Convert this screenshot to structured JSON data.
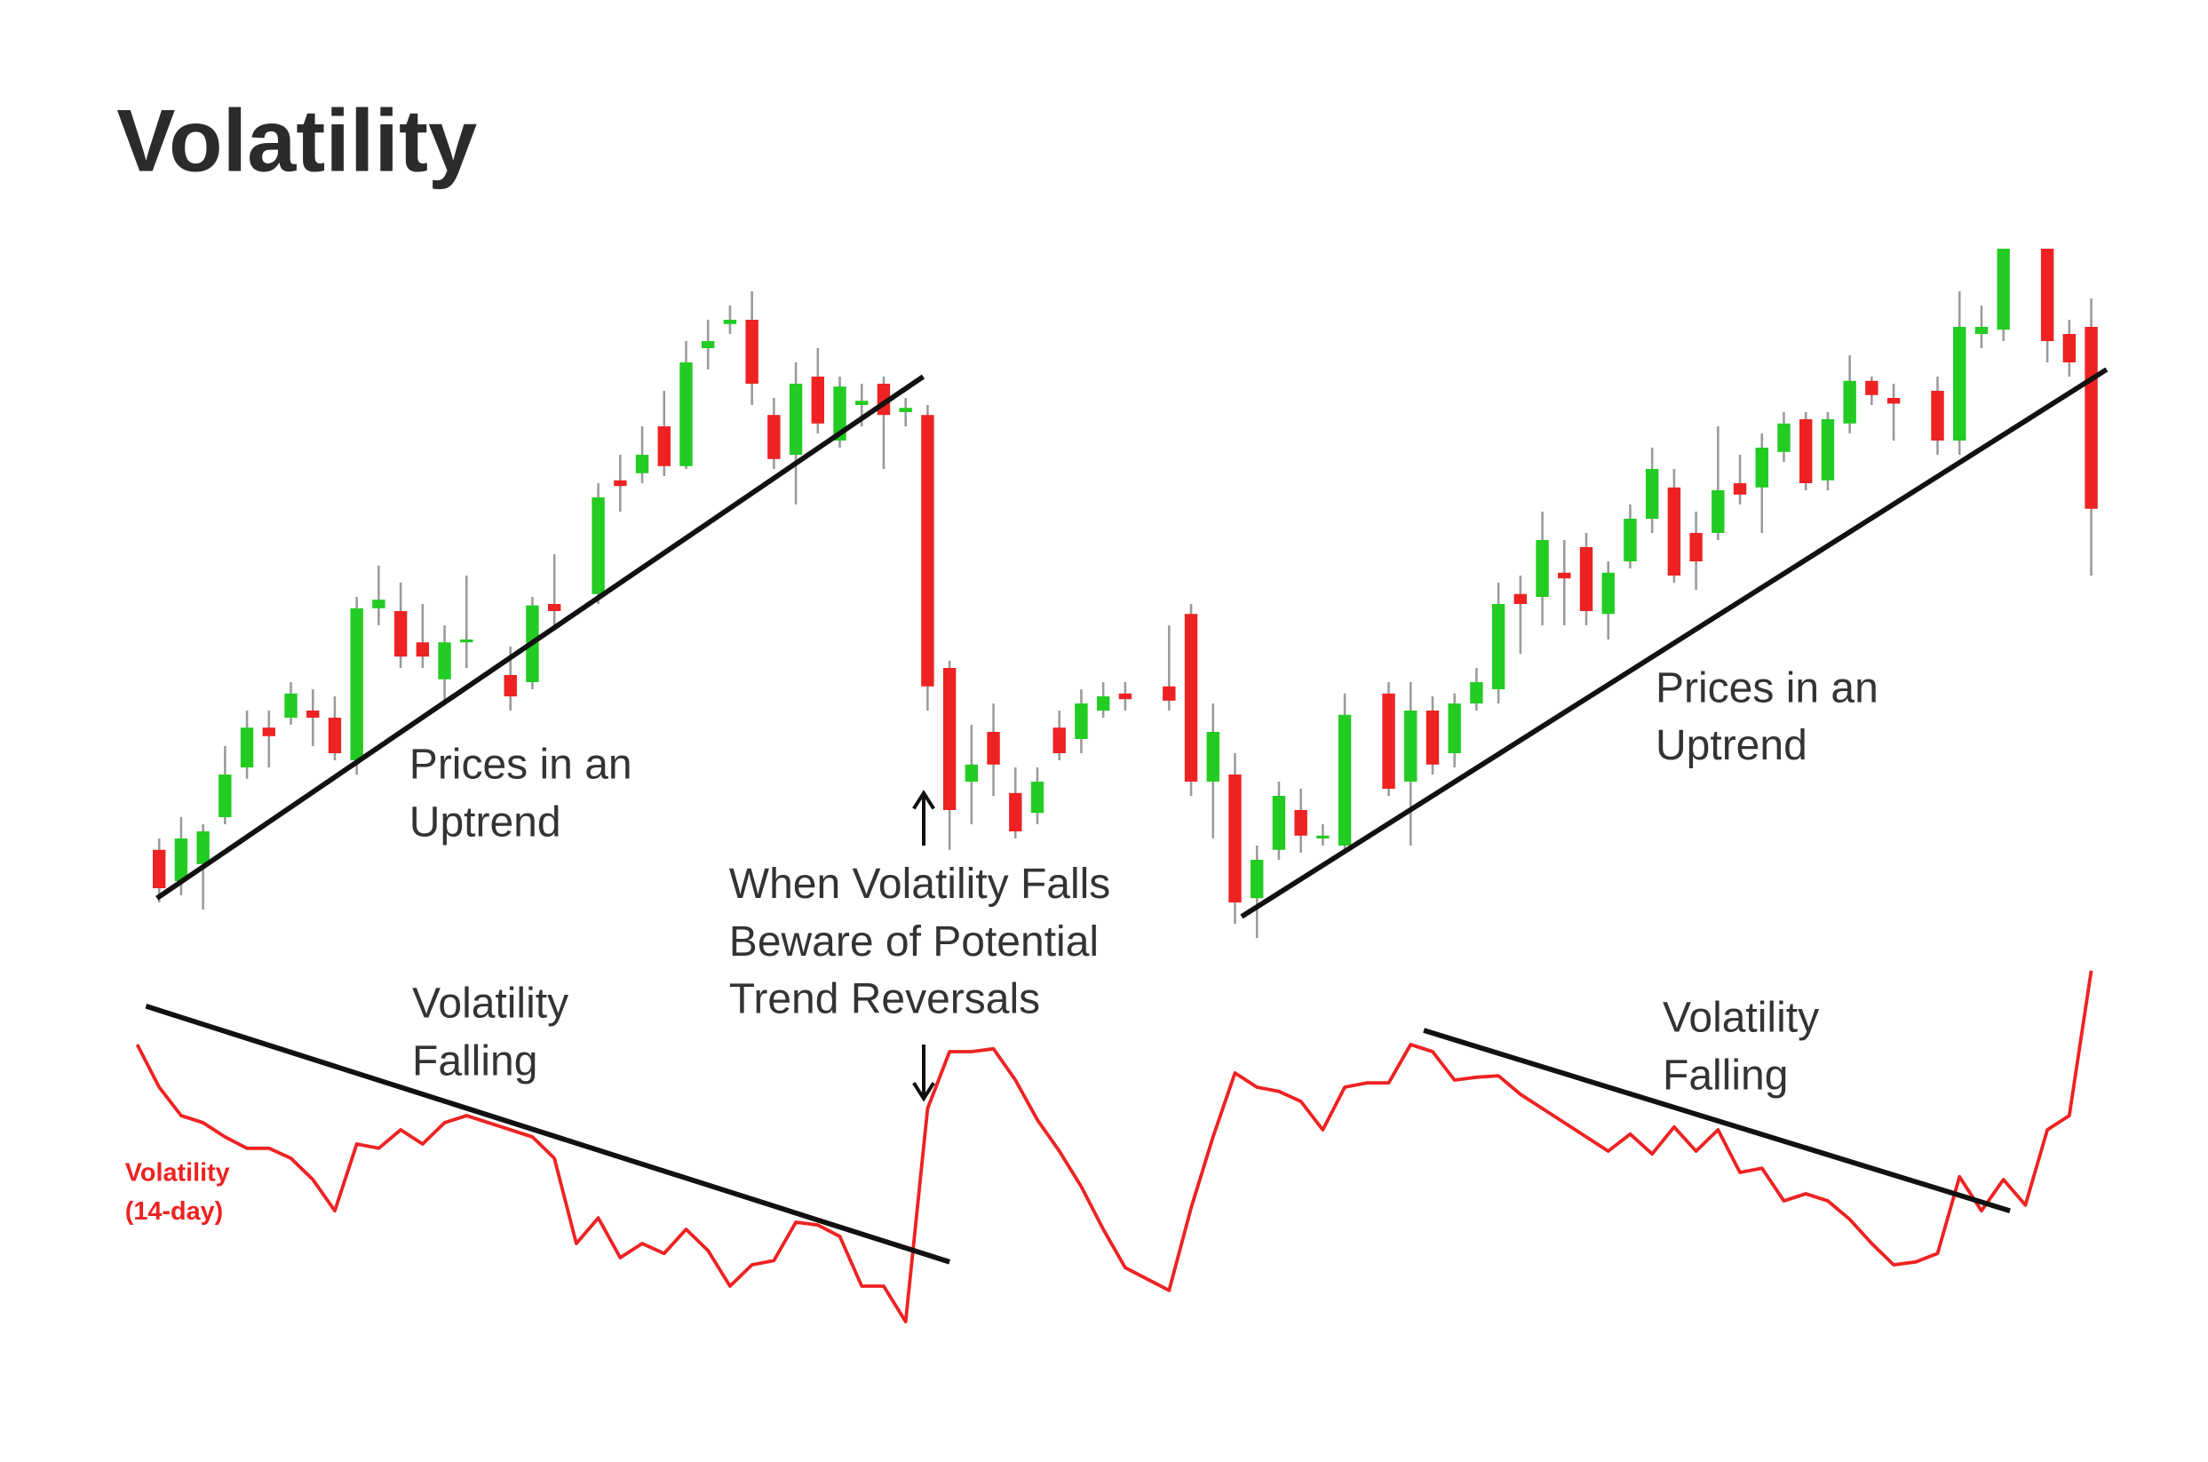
{
  "chart_data": {
    "type": "candlestick",
    "title": "Volatility",
    "xlim": [
      -1,
      88
    ],
    "ylim": [
      0,
      490
    ],
    "y2lim": [
      0,
      260
    ],
    "series": [
      {
        "type": "candlestick",
        "up_color": "#22cc22",
        "down_color": "#ee2222",
        "wick_color": "#9a9a9a",
        "x": [
          0,
          1,
          2,
          3,
          4,
          5,
          6,
          7,
          8,
          9,
          10,
          11,
          12,
          13,
          14,
          16,
          17,
          18,
          20,
          21,
          22,
          23,
          24,
          25,
          26,
          27,
          28,
          29,
          30,
          31,
          32,
          33,
          34,
          35,
          36,
          37,
          38,
          39,
          40,
          41,
          42,
          43,
          44,
          46,
          47,
          48,
          49,
          50,
          51,
          52,
          53,
          54,
          56,
          57,
          58,
          59,
          60,
          61,
          62,
          63,
          64,
          65,
          66,
          67,
          68,
          69,
          70,
          71,
          72,
          73,
          74,
          75,
          76,
          77,
          78,
          79,
          81,
          82,
          83,
          84,
          86,
          87,
          88
        ],
        "open": [
          62,
          40,
          52,
          85,
          120,
          148,
          155,
          160,
          155,
          125,
          232,
          230,
          208,
          182,
          208,
          185,
          180,
          235,
          242,
          322,
          327,
          360,
          332,
          415,
          432,
          435,
          368,
          340,
          395,
          350,
          375,
          390,
          370,
          368,
          190,
          110,
          145,
          102,
          88,
          148,
          140,
          160,
          172,
          177,
          228,
          110,
          115,
          28,
          62,
          90,
          70,
          65,
          172,
          110,
          160,
          130,
          165,
          175,
          242,
          240,
          257,
          275,
          228,
          265,
          295,
          317,
          285,
          285,
          320,
          317,
          342,
          365,
          322,
          362,
          392,
          380,
          385,
          350,
          425,
          428,
          485,
          425,
          430
        ],
        "high": [
          70,
          85,
          80,
          135,
          160,
          160,
          180,
          175,
          170,
          240,
          262,
          250,
          235,
          220,
          255,
          205,
          240,
          270,
          320,
          340,
          360,
          385,
          420,
          435,
          445,
          455,
          380,
          405,
          415,
          395,
          390,
          395,
          380,
          375,
          195,
          150,
          165,
          120,
          120,
          160,
          175,
          180,
          180,
          220,
          235,
          165,
          130,
          65,
          110,
          105,
          80,
          172,
          180,
          180,
          170,
          172,
          190,
          250,
          255,
          300,
          280,
          285,
          265,
          305,
          345,
          330,
          300,
          360,
          340,
          355,
          370,
          370,
          370,
          410,
          395,
          390,
          395,
          455,
          445,
          485,
          485,
          435,
          450
        ],
        "low": [
          25,
          30,
          20,
          80,
          112,
          120,
          150,
          135,
          125,
          115,
          220,
          190,
          190,
          165,
          190,
          160,
          175,
          220,
          235,
          300,
          320,
          325,
          330,
          400,
          425,
          375,
          330,
          305,
          355,
          345,
          360,
          330,
          360,
          160,
          62,
          80,
          100,
          70,
          80,
          125,
          130,
          155,
          160,
          160,
          100,
          70,
          10,
          0,
          55,
          60,
          65,
          60,
          100,
          65,
          115,
          120,
          160,
          165,
          200,
          220,
          220,
          220,
          210,
          260,
          285,
          250,
          245,
          280,
          305,
          285,
          335,
          315,
          315,
          355,
          375,
          350,
          340,
          340,
          415,
          420,
          405,
          395,
          255
        ],
        "close": [
          35,
          70,
          75,
          115,
          148,
          142,
          172,
          155,
          130,
          232,
          238,
          198,
          198,
          208,
          210,
          170,
          234,
          230,
          310,
          318,
          340,
          332,
          405,
          420,
          435,
          390,
          337,
          390,
          362,
          388,
          378,
          368,
          373,
          177,
          90,
          122,
          122,
          75,
          110,
          130,
          165,
          170,
          168,
          167,
          110,
          145,
          25,
          55,
          100,
          72,
          72,
          157,
          105,
          160,
          122,
          165,
          180,
          235,
          235,
          280,
          253,
          230,
          257,
          295,
          330,
          255,
          265,
          315,
          312,
          345,
          362,
          320,
          365,
          392,
          382,
          376,
          350,
          430,
          430,
          485,
          420,
          405,
          302
        ]
      },
      {
        "type": "line",
        "name": "Volatility (14-day)",
        "color": "#ee2222",
        "axis": "y2",
        "x": [
          -1,
          0,
          1,
          2,
          3,
          4,
          5,
          6,
          7,
          8,
          9,
          10,
          11,
          12,
          13,
          14,
          15,
          16,
          17,
          18,
          19,
          20,
          21,
          22,
          23,
          24,
          25,
          26,
          27,
          28,
          29,
          30,
          31,
          32,
          33,
          34,
          35,
          36,
          37,
          38,
          39,
          40,
          41,
          42,
          43,
          44,
          45,
          46,
          47,
          48,
          49,
          50,
          51,
          52,
          53,
          54,
          55,
          56,
          57,
          58,
          59,
          60,
          61,
          62,
          63,
          64,
          65,
          66,
          67,
          68,
          69,
          70,
          71,
          72,
          73,
          74,
          75,
          76,
          77,
          78,
          79,
          80,
          81,
          82,
          83,
          84,
          85,
          86,
          87,
          88
        ],
        "values": [
          205,
          175,
          155,
          150,
          140,
          132,
          132,
          125,
          110,
          88,
          135,
          132,
          145,
          135,
          150,
          155,
          150,
          145,
          140,
          125,
          65,
          83,
          55,
          65,
          58,
          75,
          60,
          35,
          50,
          53,
          80,
          78,
          70,
          35,
          35,
          10,
          160,
          200,
          200,
          202,
          180,
          152,
          130,
          105,
          75,
          48,
          40,
          32,
          90,
          140,
          185,
          175,
          172,
          165,
          145,
          175,
          178,
          178,
          205,
          200,
          180,
          182,
          183,
          170,
          160,
          150,
          140,
          130,
          142,
          128,
          147,
          130,
          145,
          115,
          118,
          95,
          100,
          95,
          82,
          65,
          50,
          52,
          58,
          112,
          88,
          110,
          92,
          145,
          155,
          257
        ]
      }
    ],
    "trendlines": [
      {
        "x": [
          -0.1,
          34.8
        ],
        "y": [
          28,
          395
        ]
      },
      {
        "x": [
          49.3,
          88.7
        ],
        "y": [
          15,
          400
        ]
      },
      {
        "x": [
          -0.6,
          36.0
        ],
        "y": [
          232,
          52
        ],
        "axis": "y2"
      },
      {
        "x": [
          57.6,
          84.3
        ],
        "y": [
          215,
          88
        ],
        "axis": "y2"
      }
    ],
    "annotations": [
      {
        "text": [
          "Prices in an",
          "Uptrend"
        ]
      },
      {
        "text": [
          "When Volatility Falls",
          "Beware of Potential",
          "Trend Reversals"
        ]
      },
      {
        "text": [
          "Prices in an",
          "Uptrend"
        ]
      },
      {
        "text": [
          "Volatility",
          "Falling"
        ]
      },
      {
        "text": [
          "Volatility",
          "Falling"
        ]
      }
    ]
  }
}
